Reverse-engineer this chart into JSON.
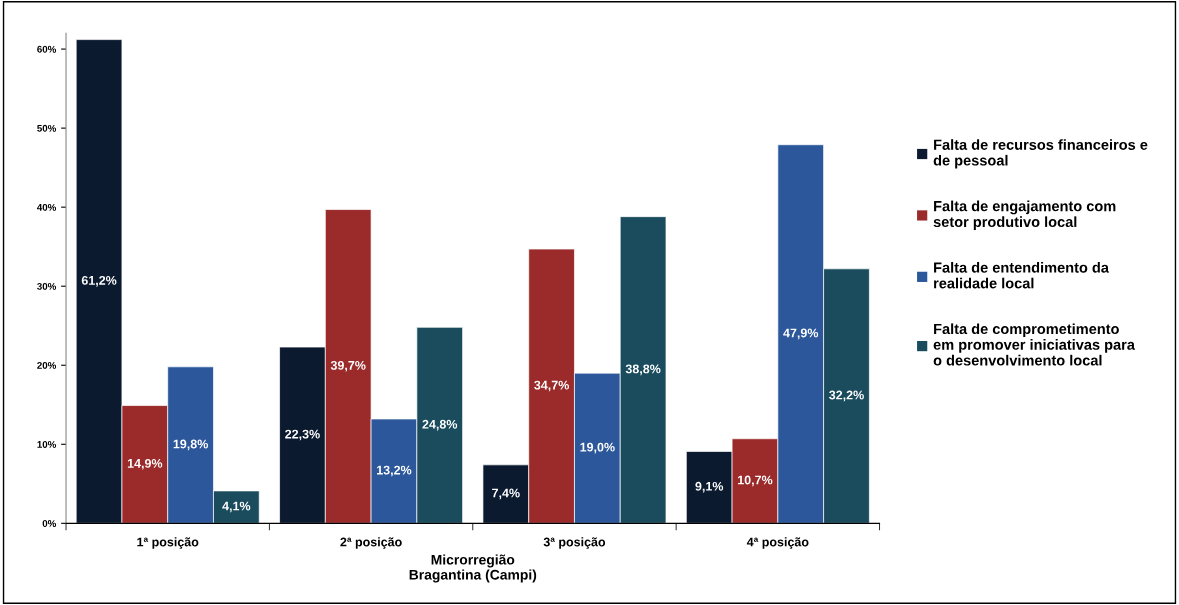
{
  "chart_data": {
    "type": "bar",
    "xlabel": "Microrregião\nBragantina (Campi)",
    "categories": [
      "1ª posição",
      "2ª posição",
      "3ª posição",
      "4ª posição"
    ],
    "series": [
      {
        "name": "Falta de recursos financeiros e\nde pessoal",
        "color": "#0c1a30",
        "values": [
          61.2,
          22.3,
          7.4,
          9.1
        ],
        "value_labels": [
          "61,2%",
          "22,3%",
          "7,4%",
          "9,1%"
        ]
      },
      {
        "name": "Falta de engajamento com\nsetor produtivo local",
        "color": "#9b2a2a",
        "values": [
          14.9,
          39.7,
          34.7,
          10.7
        ],
        "value_labels": [
          "14,9%",
          "39,7%",
          "34,7%",
          "10,7%"
        ]
      },
      {
        "name": "Falta de entendimento da\nrealidade local",
        "color": "#2c579b",
        "values": [
          19.8,
          13.2,
          19.0,
          47.9
        ],
        "value_labels": [
          "19,8%",
          "13,2%",
          "19,0%",
          "47,9%"
        ]
      },
      {
        "name": "Falta de comprometimento\nem promover iniciativas para\no desenvolvimento local",
        "color": "#1a4c5e",
        "values": [
          4.1,
          24.8,
          38.8,
          32.2
        ],
        "value_labels": [
          "4,1%",
          "24,8%",
          "38,8%",
          "32,2%"
        ]
      }
    ],
    "ylim": [
      0,
      62
    ],
    "yticks": [
      {
        "value": 0,
        "label": "0%"
      },
      {
        "value": 10,
        "label": "10%"
      },
      {
        "value": 20,
        "label": "20%"
      },
      {
        "value": 30,
        "label": "30%"
      },
      {
        "value": 40,
        "label": "40%"
      },
      {
        "value": 50,
        "label": "50%"
      },
      {
        "value": 60,
        "label": "60%"
      }
    ],
    "grid": false,
    "legend": "right"
  }
}
